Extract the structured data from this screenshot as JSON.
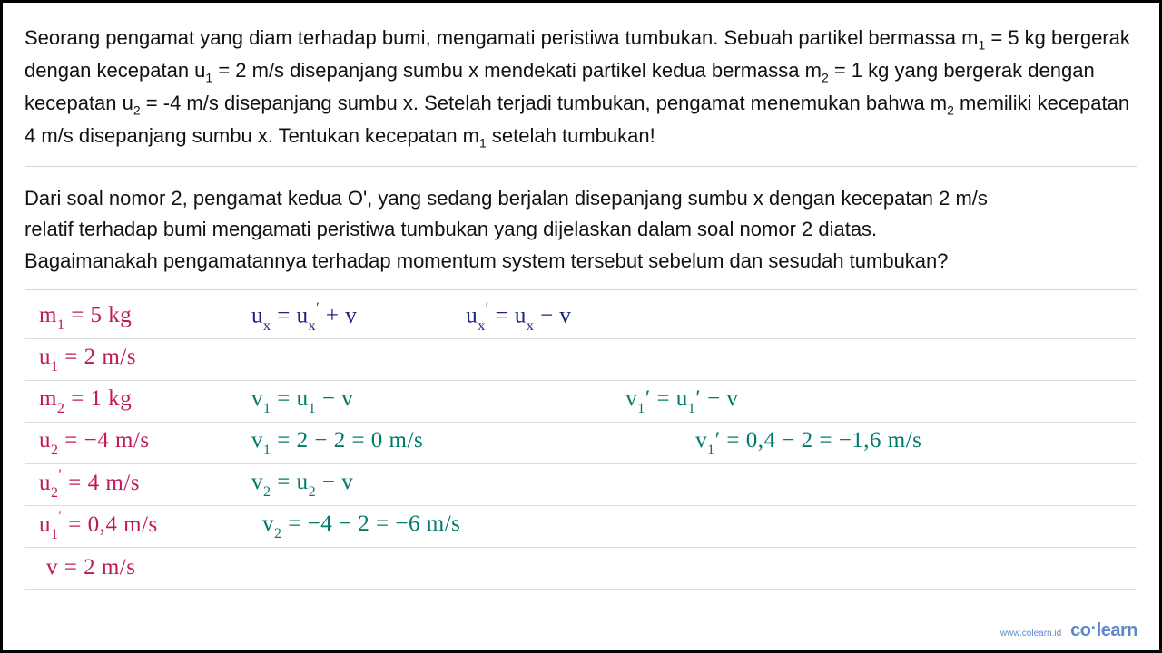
{
  "paragraph1": {
    "full_text_parts": [
      "Seorang pengamat yang diam terhadap bumi, mengamati peristiwa tumbukan. Sebuah partikel bermassa m",
      "1",
      " = 5 kg bergerak dengan kecepatan u",
      "1",
      " = 2  m/s disepanjang sumbu x mendekati partikel kedua bermassa m",
      "2",
      " = 1 kg yang bergerak dengan kecepatan u",
      "2",
      " = -4 m/s disepanjang sumbu x. Setelah terjadi  tumbukan, pengamat menemukan bahwa m",
      "2",
      " memiliki kecepatan 4 m/s disepanjang sumbu x. Tentukan kecepatan m",
      "1",
      " setelah tumbukan!"
    ]
  },
  "paragraph2": {
    "line1": "Dari soal nomor 2, pengamat kedua O', yang sedang berjalan disepanjang sumbu x dengan kecepatan 2 m/s",
    "line2": "relatif terhadap bumi mengamati peristiwa  tumbukan yang dijelaskan dalam soal nomor 2 diatas.",
    "line3": "Bagaimanakah pengamatannya terhadap momentum system tersebut sebelum dan sesudah  tumbukan?"
  },
  "rows": [
    {
      "left": {
        "var": "m",
        "sub": "1",
        "rest": " = 5 kg",
        "color": "pink"
      },
      "right": [
        {
          "html": "u<sub class='sub'>x</sub> = u<sub class='sub'>x</sub><sup class='sup'>′</sup> + v",
          "color": "blue"
        },
        {
          "html": "u<sub class='sub'>x</sub><sup class='sup'>′</sup> = u<sub class='sub'>x</sub> − v",
          "color": "blue"
        }
      ]
    },
    {
      "left": {
        "var": "u",
        "sub": "1",
        "rest": " = 2 m/s",
        "color": "pink"
      },
      "right": []
    },
    {
      "left": {
        "var": "m",
        "sub": "2",
        "rest": " = 1 kg",
        "color": "pink"
      },
      "right": [
        {
          "html": "v<sub class='sub'>1</sub> = u<sub class='sub'>1</sub> − v",
          "color": "green",
          "pad": "0"
        },
        {
          "html": "v<sub class='sub'>1</sub>′ = u<sub class='sub'>1</sub>′ − v",
          "color": "green",
          "pad": "right"
        }
      ]
    },
    {
      "left": {
        "var": "u",
        "sub": "2",
        "rest": " = −4 m/s",
        "color": "pink"
      },
      "right": [
        {
          "html": "v<sub class='sub'>1</sub> = 2 − 2 = 0 m/s",
          "color": "green",
          "pad": "0"
        },
        {
          "html": "v<sub class='sub'>1</sub>′ = 0,4 − 2 = −1,6 m/s",
          "color": "green",
          "pad": "right"
        }
      ]
    },
    {
      "left": {
        "var": "u",
        "sub": "2",
        "sup": "′",
        "rest": " = 4 m/s",
        "color": "pink"
      },
      "right": [
        {
          "html": "v<sub class='sub'>2</sub> = u<sub class='sub'>2</sub> − v",
          "color": "green"
        }
      ]
    },
    {
      "left": {
        "var": "u",
        "sub": "1",
        "sup": "′",
        "rest": " = 0,4 m/s",
        "color": "pink"
      },
      "right": [
        {
          "html": "v<sub class='sub'>2</sub> = −4 − 2 = −6 m/s",
          "color": "green",
          "indent": "12"
        }
      ]
    },
    {
      "left": {
        "var": "v",
        "rest": " = 2 m/s",
        "color": "pink",
        "indent": "8"
      },
      "right": []
    }
  ],
  "footer": {
    "url": "www.colearn.id",
    "logo_a": "co",
    "logo_dot": "·",
    "logo_b": "learn"
  }
}
